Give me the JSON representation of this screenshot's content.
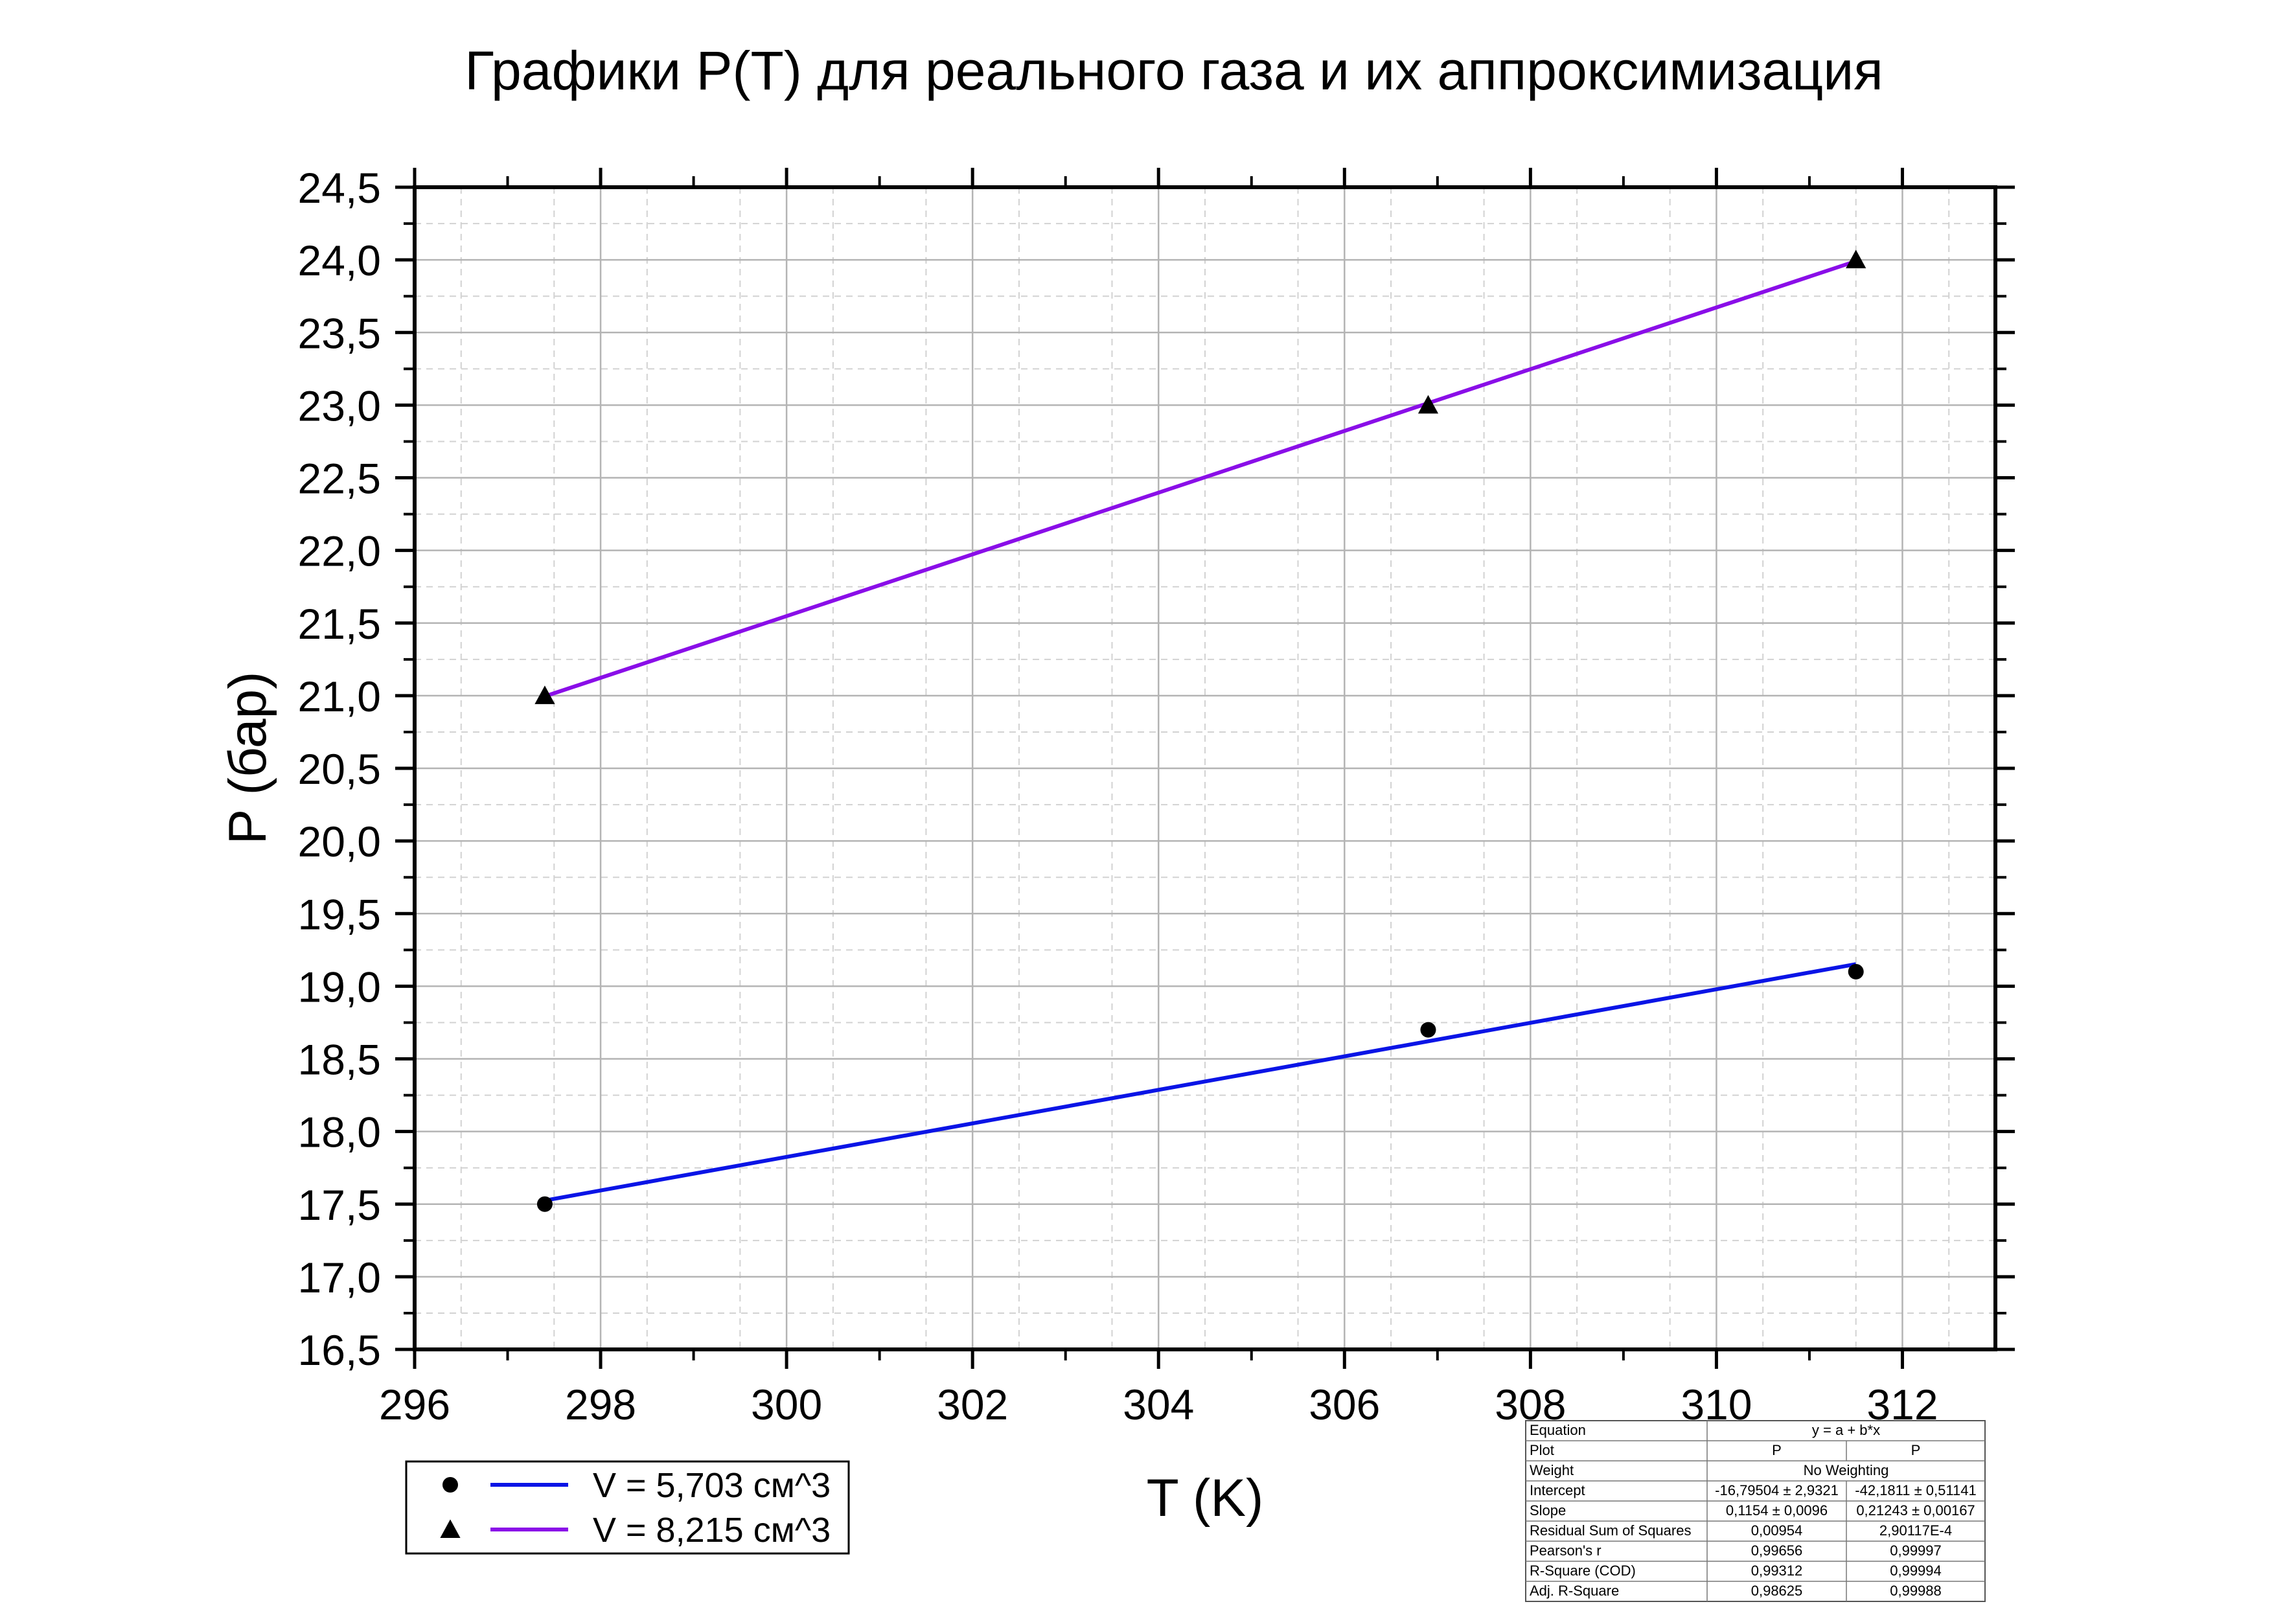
{
  "chart_data": {
    "type": "scatter",
    "title": "Графики P(T) для реального газа и их аппроксимизация",
    "xlabel": "T (K)",
    "ylabel": "P (бар)",
    "xlim": [
      296,
      313
    ],
    "ylim": [
      16.5,
      24.5
    ],
    "x_major_step": 2,
    "y_major_step": 0.5,
    "x_tick_labels": [
      "296",
      "298",
      "300",
      "302",
      "304",
      "306",
      "308",
      "310",
      "312"
    ],
    "y_tick_labels": [
      "16,5",
      "17,0",
      "17,5",
      "18,0",
      "18,5",
      "19,0",
      "19,5",
      "20,0",
      "20,5",
      "21,0",
      "21,5",
      "22,0",
      "22,5",
      "23,0",
      "23,5",
      "24,0",
      "24,5"
    ],
    "grid": true,
    "legend_position": "bottom-left",
    "series": [
      {
        "name": "V = 5,703 см^3",
        "marker": "circle",
        "color": "#0a14e6",
        "x": [
          297.4,
          306.9,
          311.5
        ],
        "y": [
          17.5,
          18.7,
          19.1
        ],
        "fit": {
          "intercept": -16.79504,
          "slope": 0.1154,
          "x_range": [
            297.4,
            311.5
          ]
        }
      },
      {
        "name": "V = 8,215 см^3",
        "marker": "triangle",
        "color": "#8a0ee8",
        "x": [
          297.4,
          306.9,
          311.5
        ],
        "y": [
          21.0,
          23.0,
          24.0
        ],
        "fit": {
          "intercept": -42.1811,
          "slope": 0.21243,
          "x_range": [
            297.4,
            311.5
          ]
        }
      }
    ],
    "stats_table": {
      "rows": [
        [
          "Equation",
          "y = a + b*x",
          null
        ],
        [
          "Plot",
          "P",
          "P"
        ],
        [
          "Weight",
          "No Weighting",
          null
        ],
        [
          "Intercept",
          "-16,79504 ± 2,9321",
          "-42,1811 ± 0,51141"
        ],
        [
          "Slope",
          "0,1154 ± 0,0096",
          "0,21243 ± 0,00167"
        ],
        [
          "Residual Sum of Squares",
          "0,00954",
          "2,90117E-4"
        ],
        [
          "Pearson's r",
          "0,99656",
          "0,99997"
        ],
        [
          "R-Square (COD)",
          "0,99312",
          "0,99994"
        ],
        [
          "Adj. R-Square",
          "0,98625",
          "0,99988"
        ]
      ]
    }
  }
}
